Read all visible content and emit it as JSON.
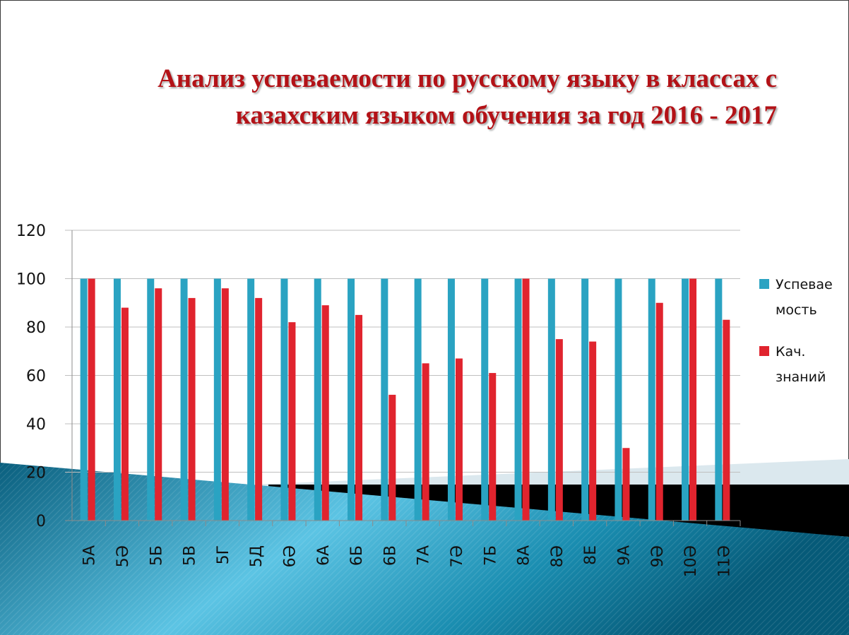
{
  "slide": {
    "title_line1": "Анализ успеваемости по русскому языку в классах с",
    "title_line2": "казахским языком обучения  за год 2016 - 2017"
  },
  "colors": {
    "series1": "#2aa3c2",
    "series2": "#e0242e",
    "title": "#b31217",
    "grid": "#bfbfbf"
  },
  "chart_data": {
    "type": "bar",
    "title": "",
    "xlabel": "",
    "ylabel": "",
    "ylim": [
      0,
      120
    ],
    "yticks": [
      0,
      20,
      40,
      60,
      80,
      100,
      120
    ],
    "grid": true,
    "legend_position": "right",
    "categories": [
      "5А",
      "5Ә",
      "5Б",
      "5В",
      "5Г",
      "5Д",
      "6Ә",
      "6А",
      "6Б",
      "6В",
      "7А",
      "7Ә",
      "7Б",
      "8А",
      "8Ә",
      "8Е",
      "9А",
      "9Ә",
      "10Ә",
      "11Ә"
    ],
    "series": [
      {
        "name_lines": [
          "Успевае",
          "мость"
        ],
        "color": "#2aa3c2",
        "values": [
          100,
          100,
          100,
          100,
          100,
          100,
          100,
          100,
          100,
          100,
          100,
          100,
          100,
          100,
          100,
          100,
          100,
          100,
          100,
          100
        ]
      },
      {
        "name_lines": [
          "Кач.",
          "знаний"
        ],
        "color": "#e0242e",
        "values": [
          100,
          88,
          96,
          92,
          96,
          92,
          82,
          89,
          85,
          52,
          65,
          67,
          61,
          100,
          75,
          74,
          30,
          90,
          100,
          83
        ]
      }
    ]
  }
}
